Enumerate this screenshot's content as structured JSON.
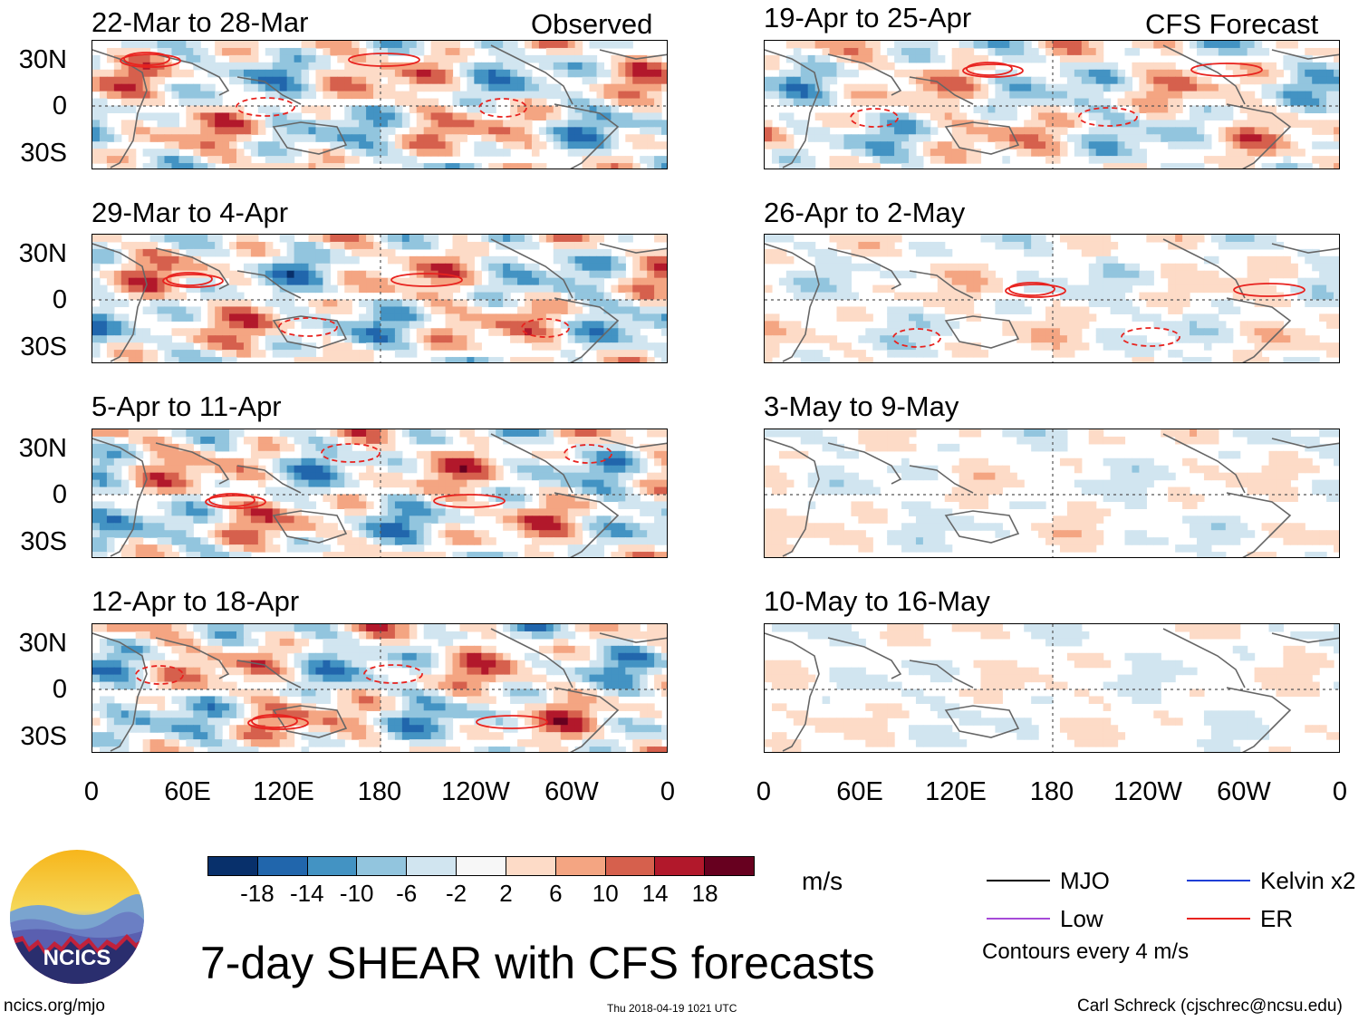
{
  "left_column": {
    "panels": [
      {
        "title": "22-Mar to 28-Mar",
        "tag": "Observed"
      },
      {
        "title": "29-Mar to 4-Apr",
        "tag": ""
      },
      {
        "title": "5-Apr to 11-Apr",
        "tag": ""
      },
      {
        "title": "12-Apr to 18-Apr",
        "tag": ""
      }
    ]
  },
  "right_column": {
    "panels": [
      {
        "title": "19-Apr to 25-Apr",
        "tag": "CFS Forecast"
      },
      {
        "title": "26-Apr to 2-May",
        "tag": ""
      },
      {
        "title": "3-May to 9-May",
        "tag": ""
      },
      {
        "title": "10-May to 16-May",
        "tag": ""
      }
    ]
  },
  "lat_labels": [
    "30N",
    "0",
    "30S"
  ],
  "lon_labels": [
    "0",
    "60E",
    "120E",
    "180",
    "120W",
    "60W",
    "0"
  ],
  "colorbar": {
    "colors": [
      "#08306b",
      "#2166ac",
      "#4393c3",
      "#92c5de",
      "#d1e5f0",
      "#f7f7f7",
      "#fddbc7",
      "#f4a582",
      "#d6604d",
      "#b2182b",
      "#67001f"
    ],
    "labels": [
      "-18",
      "-14",
      "-10",
      "-6",
      "-2",
      "2",
      "6",
      "10",
      "14",
      "18"
    ],
    "units": "m/s"
  },
  "legend": {
    "items": [
      {
        "label": "MJO",
        "color": "#000000"
      },
      {
        "label": "Kelvin x2",
        "color": "#1f3fd6"
      },
      {
        "label": "Low",
        "color": "#a64ad8"
      },
      {
        "label": "ER",
        "color": "#e8231f"
      }
    ],
    "note": "Contours every 4 m/s"
  },
  "logo": {
    "text": "NCICS"
  },
  "main_title": "7-day SHEAR with CFS forecasts",
  "footer": {
    "left": "ncics.org/mjo",
    "center": "Thu 2018-04-19 1021 UTC",
    "right": "Carl Schreck (cjschrec@ncsu.edu)"
  },
  "chart_data": {
    "type": "heatmap",
    "variable": "7-day wind shear anomaly",
    "units": "m/s",
    "color_levels": [
      -18,
      -14,
      -10,
      -6,
      -2,
      2,
      6,
      10,
      14,
      18
    ],
    "x_ticks": [
      "0",
      "60E",
      "120E",
      "180",
      "120W",
      "60W",
      "0"
    ],
    "y_ticks": [
      "30N",
      "0",
      "30S"
    ],
    "contour_interval": "4 m/s",
    "observed_periods": [
      "22-Mar to 28-Mar",
      "29-Mar to 4-Apr",
      "5-Apr to 11-Apr",
      "12-Apr to 18-Apr"
    ],
    "forecast_periods": [
      "19-Apr to 25-Apr",
      "26-Apr to 2-May",
      "3-May to 9-May",
      "10-May to 16-May"
    ]
  }
}
